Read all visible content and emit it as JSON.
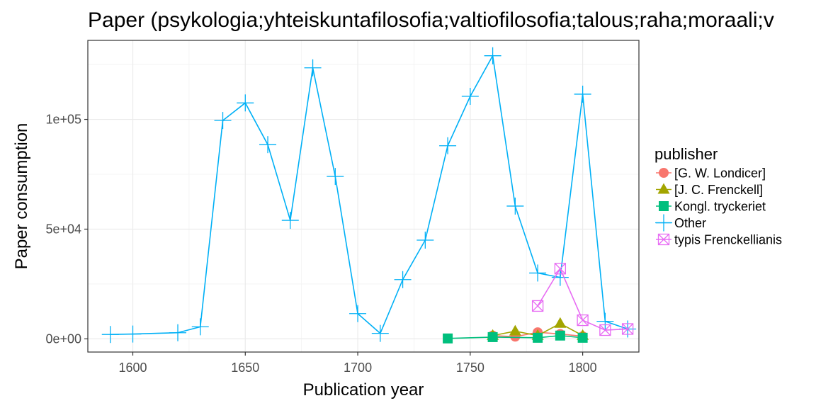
{
  "chart_data": {
    "type": "line",
    "title": "Paper (psykologia;yhteiskuntafilosofia;valtiofilosofia;talous;raha;moraali;v",
    "xlabel": "Publication year",
    "ylabel": "Paper consumption",
    "xlim": [
      1580,
      1825
    ],
    "ylim": [
      -6000,
      136000
    ],
    "x_ticks": [
      1600,
      1650,
      1700,
      1750,
      1800
    ],
    "x_tick_labels": [
      "1600",
      "1650",
      "1700",
      "1750",
      "1800"
    ],
    "y_ticks": [
      0,
      50000,
      100000
    ],
    "y_tick_labels": [
      "0e+00",
      "5e+04",
      "1e+05"
    ],
    "grid": true,
    "legend": {
      "title": "publisher",
      "placement": "right"
    },
    "series": [
      {
        "name": "[G. W. Londicer]",
        "color": "#F8766D",
        "marker": "circle",
        "x": [
          1760,
          1770,
          1780,
          1790,
          1800
        ],
        "y": [
          1500,
          1000,
          3000,
          2200,
          1200
        ]
      },
      {
        "name": "[J. C. Frenckell]",
        "color": "#A3A500",
        "marker": "triangle",
        "x": [
          1760,
          1770,
          1780,
          1790,
          1800
        ],
        "y": [
          1500,
          3500,
          1500,
          7000,
          1500
        ]
      },
      {
        "name": "Kongl. tryckeriet",
        "color": "#00BF7D",
        "marker": "square",
        "x": [
          1740,
          1760,
          1780,
          1790,
          1800
        ],
        "y": [
          200,
          800,
          500,
          1500,
          500
        ]
      },
      {
        "name": "Other",
        "color": "#00B0F6",
        "marker": "plus",
        "x": [
          1590,
          1600,
          1620,
          1630,
          1640,
          1650,
          1660,
          1670,
          1680,
          1690,
          1700,
          1710,
          1720,
          1730,
          1740,
          1750,
          1760,
          1770,
          1780,
          1790,
          1800,
          1810,
          1820
        ],
        "y": [
          2000,
          2200,
          2800,
          5500,
          99500,
          107500,
          88500,
          54000,
          123500,
          74000,
          11500,
          2500,
          27000,
          45000,
          88000,
          110500,
          129000,
          60500,
          30000,
          28000,
          111500,
          8000,
          4500
        ]
      },
      {
        "name": "typis Frenckellianis",
        "color": "#E76BF3",
        "marker": "square-x",
        "x": [
          1780,
          1790,
          1800,
          1810,
          1820
        ],
        "y": [
          15000,
          32000,
          8500,
          4000,
          4500
        ]
      }
    ]
  }
}
